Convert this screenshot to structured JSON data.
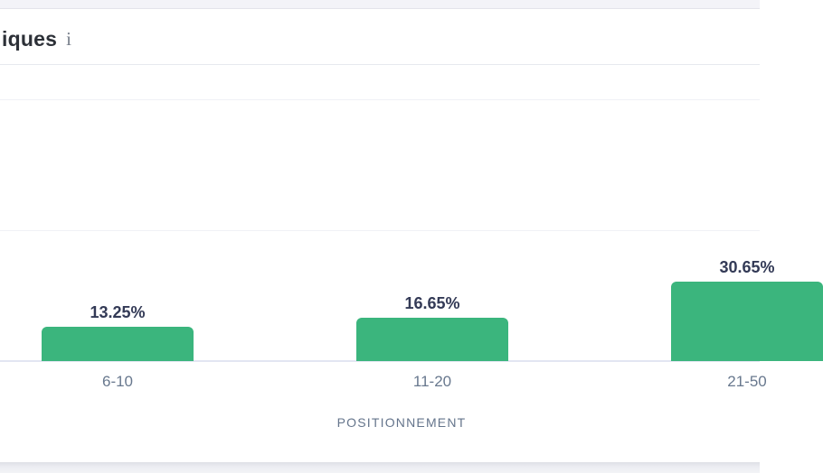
{
  "card": {
    "title_fragment": "iques",
    "info_icon_glyph": "i"
  },
  "chart_data": {
    "type": "bar",
    "title": "iques",
    "categories": [
      "6-10",
      "11-20",
      "21-50"
    ],
    "values": [
      13.25,
      16.65,
      30.65
    ],
    "value_labels": [
      "13.25%",
      "16.65%",
      "30.65%"
    ],
    "xlabel": "POSITIONNEMENT",
    "ylabel": "",
    "ylim": [
      0,
      100
    ],
    "gridlines_pct": [
      50,
      100
    ],
    "grid": "horizontal",
    "legend": "none",
    "bar_color": "#3bb57d",
    "value_label_color": "#333a56",
    "axis_label_color": "#68788e",
    "axis_title_color": "#64748b"
  }
}
